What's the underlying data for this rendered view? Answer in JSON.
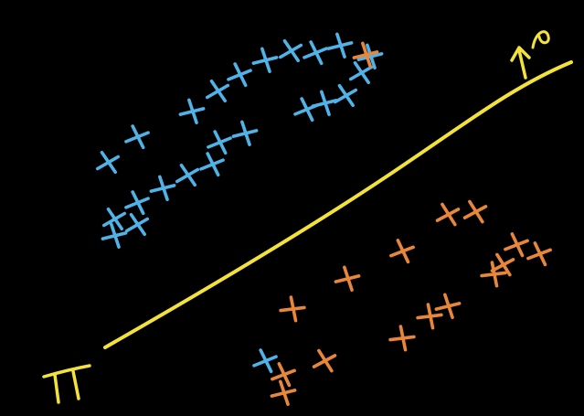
{
  "colors": {
    "background": "#000000",
    "class_a": "#4fb3e8",
    "class_b": "#e8863a",
    "hyperplane": "#f2e23a"
  },
  "labels": {
    "hyperplane": "π",
    "normal": "w"
  },
  "classes": [
    {
      "name": "",
      "color_key": "class_a",
      "marker": "x-mark-icon",
      "count": 24
    },
    {
      "name": "",
      "color_key": "class_b",
      "marker": "x-mark-icon",
      "count": 16
    }
  ]
}
